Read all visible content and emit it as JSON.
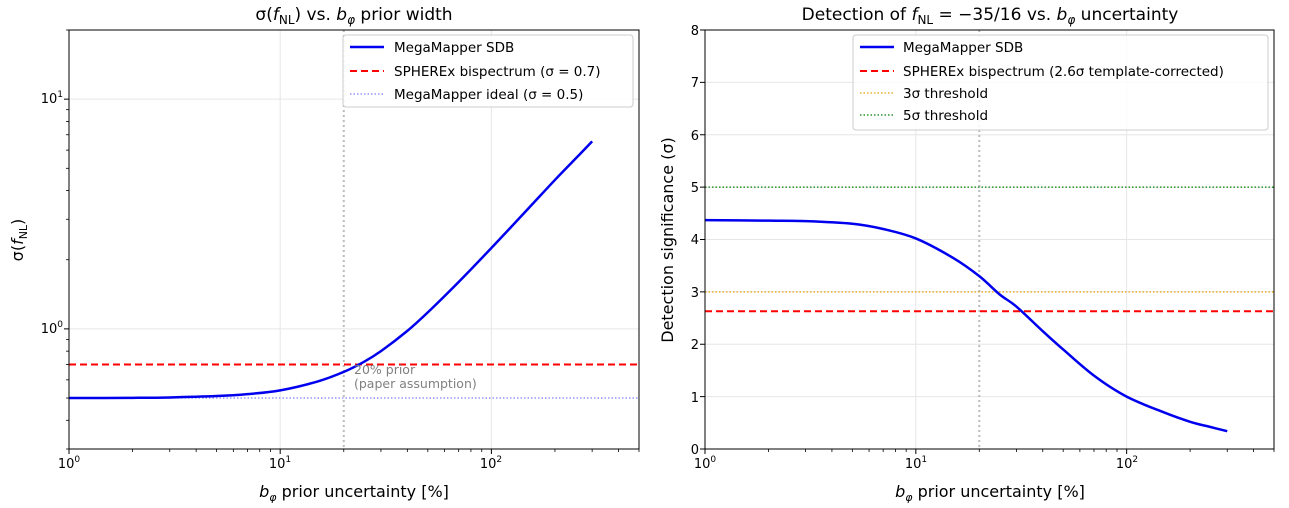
{
  "chart_data": [
    {
      "type": "line",
      "title": "σ(f_NL) vs. b_φ prior width",
      "title_parts": {
        "a": "σ(",
        "b": "f",
        "c": "NL",
        "d": ") vs. ",
        "e": "b",
        "f": "φ",
        "g": " prior width"
      },
      "xlabel": "b_φ prior uncertainty [%]",
      "xlabel_parts": {
        "a": "b",
        "b": "φ",
        "c": " prior uncertainty [%]"
      },
      "ylabel": "σ(f_NL)",
      "ylabel_parts": {
        "a": "σ(",
        "b": "f",
        "c": "NL",
        "d": ")"
      },
      "xscale": "log",
      "yscale": "log",
      "xlim": [
        1,
        500
      ],
      "ylim": [
        0.3,
        20
      ],
      "grid": true,
      "legend_position": "top-right",
      "x_ticks": [
        {
          "value": 1,
          "base": "10",
          "exp": "0"
        },
        {
          "value": 10,
          "base": "10",
          "exp": "1"
        },
        {
          "value": 100,
          "base": "10",
          "exp": "2"
        }
      ],
      "y_ticks": [
        {
          "value": 1,
          "base": "10",
          "exp": "0"
        },
        {
          "value": 10,
          "base": "10",
          "exp": "1"
        }
      ],
      "series": [
        {
          "name": "MegaMapper SDB",
          "color": "#0000ee",
          "style": "solid",
          "x": [
            1,
            2,
            3,
            5,
            7,
            10,
            15,
            20,
            25,
            30,
            40,
            50,
            70,
            100,
            150,
            200,
            250,
            300
          ],
          "y": [
            0.5,
            0.501,
            0.503,
            0.51,
            0.52,
            0.54,
            0.59,
            0.65,
            0.72,
            0.8,
            0.98,
            1.18,
            1.6,
            2.25,
            3.35,
            4.45,
            5.5,
            6.55
          ]
        },
        {
          "name": "SPHEREx bispectrum (σ = 0.7)",
          "color": "#ff0000",
          "style": "dashed",
          "y_const": 0.7
        },
        {
          "name": "MegaMapper ideal (σ = 0.5)",
          "color": "#8080ff",
          "style": "dotted",
          "y_const": 0.5
        }
      ],
      "vline": {
        "x": 20,
        "color": "#bbbbbb"
      },
      "annotation": {
        "x": 22,
        "y": 0.62,
        "lines": [
          "20% prior",
          "(paper assumption)"
        ]
      }
    },
    {
      "type": "line",
      "title": "Detection of f_NL = −35/16 vs. b_φ uncertainty",
      "title_parts": {
        "a": "Detection of ",
        "b": "f",
        "c": "NL",
        "d": " = −35/16 vs. ",
        "e": "b",
        "f": "φ",
        "g": " uncertainty"
      },
      "xlabel": "b_φ prior uncertainty [%]",
      "xlabel_parts": {
        "a": "b",
        "b": "φ",
        "c": " prior uncertainty [%]"
      },
      "ylabel": "Detection significance (σ)",
      "xscale": "log",
      "yscale": "linear",
      "xlim": [
        1,
        500
      ],
      "ylim": [
        0,
        8
      ],
      "grid": true,
      "legend_position": "top-right",
      "x_ticks": [
        {
          "value": 1,
          "base": "10",
          "exp": "0"
        },
        {
          "value": 10,
          "base": "10",
          "exp": "1"
        },
        {
          "value": 100,
          "base": "10",
          "exp": "2"
        }
      ],
      "y_ticks": [
        {
          "value": 0,
          "label": "0"
        },
        {
          "value": 1,
          "label": "1"
        },
        {
          "value": 2,
          "label": "2"
        },
        {
          "value": 3,
          "label": "3"
        },
        {
          "value": 4,
          "label": "4"
        },
        {
          "value": 5,
          "label": "5"
        },
        {
          "value": 6,
          "label": "6"
        },
        {
          "value": 7,
          "label": "7"
        },
        {
          "value": 8,
          "label": "8"
        }
      ],
      "series": [
        {
          "name": "MegaMapper SDB",
          "color": "#0000ee",
          "style": "solid",
          "x": [
            1,
            2,
            3,
            5,
            7,
            10,
            15,
            20,
            25,
            30,
            40,
            50,
            70,
            100,
            150,
            200,
            250,
            300
          ],
          "y": [
            4.37,
            4.36,
            4.35,
            4.3,
            4.2,
            4.02,
            3.65,
            3.3,
            2.95,
            2.72,
            2.25,
            1.9,
            1.4,
            1.0,
            0.7,
            0.52,
            0.42,
            0.34
          ]
        },
        {
          "name": "SPHEREx bispectrum (2.6σ template-corrected)",
          "color": "#ff0000",
          "style": "dashed",
          "y_const": 2.63
        },
        {
          "name": "3σ threshold",
          "color": "#e6a000",
          "style": "dotted",
          "y_const": 3
        },
        {
          "name": "5σ threshold",
          "color": "#008000",
          "style": "dotted",
          "y_const": 5
        }
      ],
      "vline": {
        "x": 20,
        "color": "#bbbbbb"
      }
    }
  ]
}
